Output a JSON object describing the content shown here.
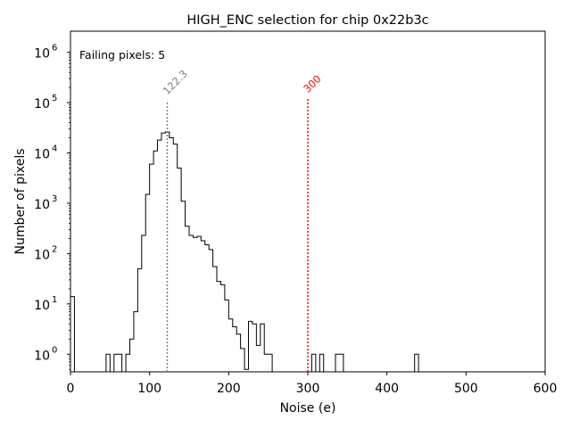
{
  "chart_data": {
    "type": "histogram",
    "title": "HIGH_ENC selection for chip 0x22b3c",
    "xlabel": "Noise (e)",
    "ylabel": "Number of pixels",
    "xlim": [
      0,
      600
    ],
    "ylim_log10": [
      -0.35,
      6.42
    ],
    "yscale": "log",
    "bin_width": 5,
    "x_ticks": [
      0,
      100,
      200,
      300,
      400,
      500,
      600
    ],
    "x_tick_labels": [
      "0",
      "100",
      "200",
      "300",
      "400",
      "500",
      "600"
    ],
    "y_tick_exponents": [
      0,
      1,
      2,
      3,
      4,
      5,
      6
    ],
    "y_tick_base": "10",
    "annotation": {
      "text": "Failing pixels: 5",
      "color": "#ff0000"
    },
    "vlines": [
      {
        "x": 122.3,
        "label": "122.3",
        "color": "#808080",
        "top": 110000
      },
      {
        "x": 300,
        "label": "300",
        "color": "#ff0000",
        "top": 120000
      }
    ],
    "bins": [
      [
        0,
        14
      ],
      [
        45,
        1
      ],
      [
        50,
        0
      ],
      [
        55,
        1
      ],
      [
        60,
        1
      ],
      [
        65,
        0
      ],
      [
        70,
        1
      ],
      [
        75,
        2
      ],
      [
        80,
        7
      ],
      [
        85,
        50
      ],
      [
        90,
        230
      ],
      [
        95,
        1500
      ],
      [
        100,
        6000
      ],
      [
        105,
        11000
      ],
      [
        110,
        18000
      ],
      [
        115,
        25000
      ],
      [
        120,
        26000
      ],
      [
        125,
        20000
      ],
      [
        130,
        15000
      ],
      [
        135,
        5000
      ],
      [
        140,
        1100
      ],
      [
        145,
        350
      ],
      [
        150,
        230
      ],
      [
        155,
        210
      ],
      [
        160,
        220
      ],
      [
        165,
        180
      ],
      [
        170,
        150
      ],
      [
        175,
        120
      ],
      [
        180,
        55
      ],
      [
        185,
        28
      ],
      [
        190,
        24
      ],
      [
        195,
        12
      ],
      [
        200,
        5
      ],
      [
        205,
        3.5
      ],
      [
        210,
        2.5
      ],
      [
        215,
        1.3
      ],
      [
        220,
        0.5
      ],
      [
        225,
        4.5
      ],
      [
        230,
        4
      ],
      [
        235,
        1.5
      ],
      [
        240,
        4
      ],
      [
        245,
        1
      ],
      [
        250,
        1
      ],
      [
        305,
        1
      ],
      [
        315,
        1
      ],
      [
        335,
        1
      ],
      [
        340,
        1
      ],
      [
        435,
        1
      ]
    ],
    "bins_note": "Each pair is [bin start (e), count]; bins with zero count omitted; display starts bins at the listed start and continues to start + bin_width."
  }
}
